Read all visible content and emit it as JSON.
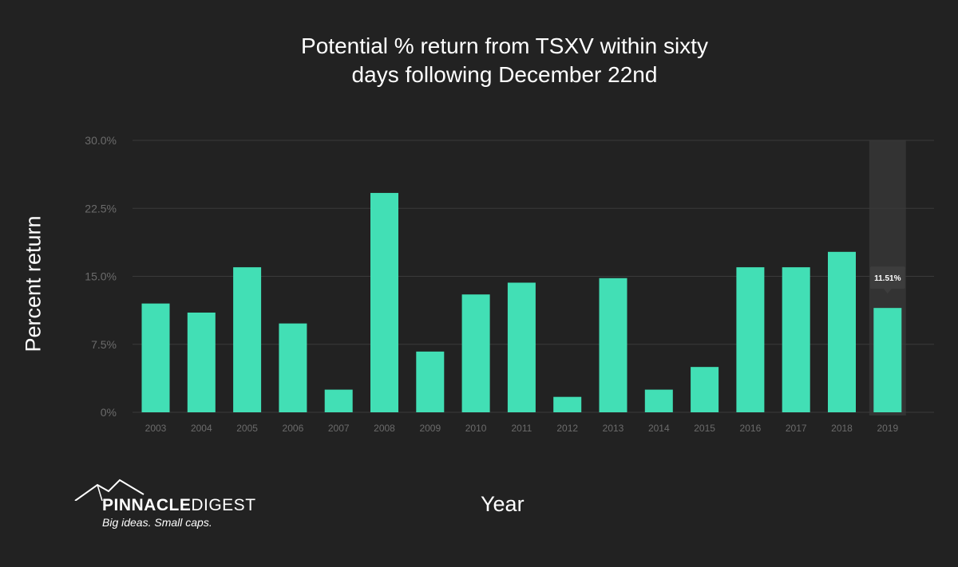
{
  "chart_data": {
    "type": "bar",
    "title_lines": [
      "Potential % return from TSXV within sixty",
      "days following December 22nd"
    ],
    "xlabel": "Year",
    "ylabel": "Percent return",
    "categories": [
      "2003",
      "2004",
      "2005",
      "2006",
      "2007",
      "2008",
      "2009",
      "2010",
      "2011",
      "2012",
      "2013",
      "2014",
      "2015",
      "2016",
      "2017",
      "2018",
      "2019"
    ],
    "values": [
      12.0,
      11.0,
      16.0,
      9.8,
      2.5,
      24.2,
      6.7,
      13.0,
      14.3,
      1.7,
      14.8,
      2.5,
      5.0,
      16.0,
      16.0,
      17.7,
      11.51
    ],
    "y_ticks": [
      "0%",
      "7.5%",
      "15.0%",
      "22.5%",
      "30.0%"
    ],
    "ylim": [
      0,
      30
    ],
    "grid": true,
    "bar_color": "#42dfb5",
    "highlight": {
      "category": "2019",
      "tooltip": "11.51%"
    }
  },
  "logo": {
    "name_bold": "PINNACLE",
    "name_light": "DIGEST",
    "tagline": "Big ideas. Small caps."
  },
  "colors": {
    "background": "#222222",
    "grid": "#3a3a3a",
    "tick_text": "#6b6b6b",
    "highlight_band": "#333333",
    "tooltip_bg": "#3d3d3d"
  }
}
